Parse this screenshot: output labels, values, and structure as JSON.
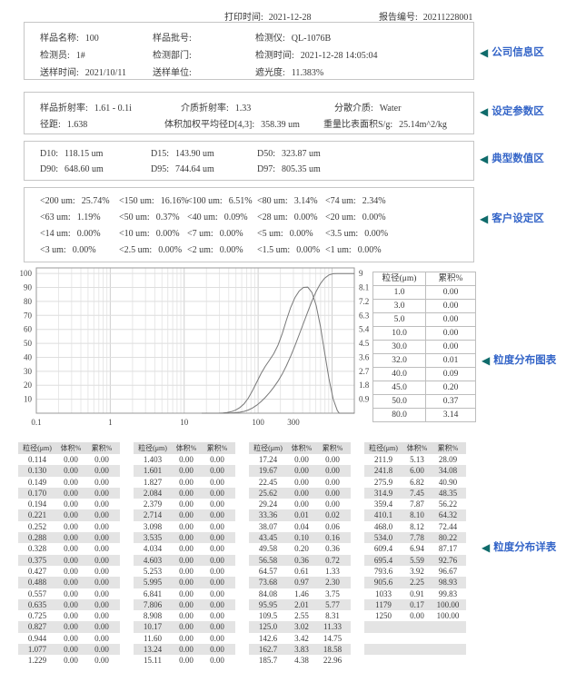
{
  "accent": {
    "label_text_color": "#3465c8",
    "arrow_color": "#0f6b6b"
  },
  "header": {
    "print_label": "打印时间:",
    "print_value": "2021-12-28",
    "report_label": "报告编号:",
    "report_value": "20211228001"
  },
  "company": {
    "label": "公司信息区",
    "fields": [
      [
        "样品名称:",
        "100"
      ],
      [
        "样品批号:",
        ""
      ],
      [
        "检测仪:",
        "QL-1076B"
      ],
      [
        "检测员:",
        "1#"
      ],
      [
        "检测部门:",
        ""
      ],
      [
        "检测时间:",
        "2021-12-28 14:05:04"
      ],
      [
        "送样时间:",
        "2021/10/11"
      ],
      [
        "送样单位:",
        ""
      ],
      [
        "遮光度:",
        "11.383%"
      ]
    ]
  },
  "params": {
    "label": "设定参数区",
    "rows": [
      [
        [
          "样品折射率:",
          "1.61 - 0.1i"
        ],
        [
          "介质折射率:",
          "1.33"
        ],
        [
          "分散介质:",
          "Water"
        ]
      ],
      [
        [
          "径距:",
          "1.638"
        ],
        [
          "体积加权平均径D[4,3]:",
          "358.39 um"
        ],
        [
          "重量比表面积S/g:",
          "25.14m^2/kg"
        ]
      ]
    ]
  },
  "typical": {
    "label": "典型数值区",
    "fields": [
      [
        "D10:",
        "118.15 um"
      ],
      [
        "D15:",
        "143.90 um"
      ],
      [
        "D50:",
        "323.87 um"
      ],
      [
        "D90:",
        "648.60 um"
      ],
      [
        "D95:",
        "744.64 um"
      ],
      [
        "D97:",
        "805.35 um"
      ]
    ]
  },
  "customer": {
    "label": "客户设定区",
    "fields": [
      [
        "<200 um:",
        "25.74%"
      ],
      [
        "<150 um:",
        "16.16%"
      ],
      [
        "<100 um:",
        "6.51%"
      ],
      [
        "<80 um:",
        "3.14%"
      ],
      [
        "<74 um:",
        "2.34%"
      ],
      [
        "<63 um:",
        "1.19%"
      ],
      [
        "<50 um:",
        "0.37%"
      ],
      [
        "<40 um:",
        "0.09%"
      ],
      [
        "<28 um:",
        "0.00%"
      ],
      [
        "<20 um:",
        "0.00%"
      ],
      [
        "<14 um:",
        "0.00%"
      ],
      [
        "<10 um:",
        "0.00%"
      ],
      [
        "<7 um:",
        "0.00%"
      ],
      [
        "<5 um:",
        "0.00%"
      ],
      [
        "<3.5 um:",
        "0.00%"
      ],
      [
        "<3 um:",
        "0.00%"
      ],
      [
        "<2.5 um:",
        "0.00%"
      ],
      [
        "<2 um:",
        "0.00%"
      ],
      [
        "<1.5 um:",
        "0.00%"
      ],
      [
        "<1 um:",
        "0.00%"
      ]
    ]
  },
  "chart_section": {
    "label": "粒度分布图表",
    "side_table": {
      "headers": [
        "粒径(μm)",
        "累积%"
      ],
      "rows": [
        [
          "1.0",
          "0.00"
        ],
        [
          "3.0",
          "0.00"
        ],
        [
          "5.0",
          "0.00"
        ],
        [
          "10.0",
          "0.00"
        ],
        [
          "30.0",
          "0.00"
        ],
        [
          "32.0",
          "0.01"
        ],
        [
          "40.0",
          "0.09"
        ],
        [
          "45.0",
          "0.20"
        ],
        [
          "50.0",
          "0.37"
        ],
        [
          "80.0",
          "3.14"
        ]
      ]
    }
  },
  "chart_data": {
    "type": "line",
    "title": "",
    "x_scale": "log",
    "x_range": [
      0.1,
      2000
    ],
    "x_ticks": [
      0.1,
      1,
      10,
      100,
      300
    ],
    "x_tick_labels": [
      "0.1",
      "1",
      "10",
      "100",
      "300"
    ],
    "y_left": {
      "range": [
        0,
        104
      ],
      "ticks": [
        10,
        20,
        30,
        40,
        50,
        60,
        70,
        80,
        90,
        100
      ]
    },
    "y_right": {
      "max": 9,
      "tick_labels": [
        "0.9",
        "1.8",
        "2.7",
        "3.6",
        "4.5",
        "5.4",
        "6.3",
        "7.2",
        "8.1",
        "9"
      ]
    },
    "grid": true,
    "x": [
      17.24,
      19.67,
      22.45,
      25.62,
      29.24,
      33.36,
      38.07,
      43.45,
      49.58,
      56.58,
      64.57,
      73.68,
      84.08,
      95.95,
      109.5,
      125.0,
      142.6,
      162.7,
      185.7,
      211.9,
      241.8,
      275.9,
      314.9,
      359.4,
      410.1,
      468.0,
      534.0,
      609.4,
      695.4,
      793.6,
      905.6,
      1033,
      1179,
      1250
    ],
    "series": [
      {
        "name": "累积%",
        "axis": "left",
        "y": [
          0,
          0,
          0,
          0,
          0,
          0.02,
          0.06,
          0.16,
          0.36,
          0.72,
          1.33,
          2.3,
          3.75,
          5.77,
          8.31,
          11.33,
          14.75,
          18.58,
          22.96,
          28.09,
          34.08,
          40.9,
          48.35,
          56.22,
          64.32,
          72.44,
          80.22,
          87.17,
          92.76,
          96.67,
          98.93,
          99.83,
          100,
          100
        ]
      },
      {
        "name": "体积%",
        "axis": "right",
        "y": [
          0,
          0,
          0,
          0,
          0,
          0.01,
          0.04,
          0.1,
          0.2,
          0.36,
          0.61,
          0.97,
          1.46,
          2.01,
          2.55,
          3.02,
          3.42,
          3.83,
          4.38,
          5.13,
          6.0,
          6.82,
          7.45,
          7.87,
          8.1,
          8.12,
          7.78,
          6.94,
          5.59,
          3.92,
          2.25,
          0.91,
          0.17,
          0
        ]
      }
    ]
  },
  "detail_table": {
    "label": "粒度分布详表",
    "headers": [
      "粒径(μm)",
      "体积%",
      "累积%"
    ],
    "groups": [
      [
        [
          "0.114",
          "0.00",
          "0.00"
        ],
        [
          "0.130",
          "0.00",
          "0.00"
        ],
        [
          "0.149",
          "0.00",
          "0.00"
        ],
        [
          "0.170",
          "0.00",
          "0.00"
        ],
        [
          "0.194",
          "0.00",
          "0.00"
        ],
        [
          "0.221",
          "0.00",
          "0.00"
        ],
        [
          "0.252",
          "0.00",
          "0.00"
        ],
        [
          "0.288",
          "0.00",
          "0.00"
        ],
        [
          "0.328",
          "0.00",
          "0.00"
        ],
        [
          "0.375",
          "0.00",
          "0.00"
        ],
        [
          "0.427",
          "0.00",
          "0.00"
        ],
        [
          "0.488",
          "0.00",
          "0.00"
        ],
        [
          "0.557",
          "0.00",
          "0.00"
        ],
        [
          "0.635",
          "0.00",
          "0.00"
        ],
        [
          "0.725",
          "0.00",
          "0.00"
        ],
        [
          "0.827",
          "0.00",
          "0.00"
        ],
        [
          "0.944",
          "0.00",
          "0.00"
        ],
        [
          "1.077",
          "0.00",
          "0.00"
        ],
        [
          "1.229",
          "0.00",
          "0.00"
        ]
      ],
      [
        [
          "1.403",
          "0.00",
          "0.00"
        ],
        [
          "1.601",
          "0.00",
          "0.00"
        ],
        [
          "1.827",
          "0.00",
          "0.00"
        ],
        [
          "2.084",
          "0.00",
          "0.00"
        ],
        [
          "2.379",
          "0.00",
          "0.00"
        ],
        [
          "2.714",
          "0.00",
          "0.00"
        ],
        [
          "3.098",
          "0.00",
          "0.00"
        ],
        [
          "3.535",
          "0.00",
          "0.00"
        ],
        [
          "4.034",
          "0.00",
          "0.00"
        ],
        [
          "4.603",
          "0.00",
          "0.00"
        ],
        [
          "5.253",
          "0.00",
          "0.00"
        ],
        [
          "5.995",
          "0.00",
          "0.00"
        ],
        [
          "6.841",
          "0.00",
          "0.00"
        ],
        [
          "7.806",
          "0.00",
          "0.00"
        ],
        [
          "8.908",
          "0.00",
          "0.00"
        ],
        [
          "10.17",
          "0.00",
          "0.00"
        ],
        [
          "11.60",
          "0.00",
          "0.00"
        ],
        [
          "13.24",
          "0.00",
          "0.00"
        ],
        [
          "15.11",
          "0.00",
          "0.00"
        ]
      ],
      [
        [
          "17.24",
          "0.00",
          "0.00"
        ],
        [
          "19.67",
          "0.00",
          "0.00"
        ],
        [
          "22.45",
          "0.00",
          "0.00"
        ],
        [
          "25.62",
          "0.00",
          "0.00"
        ],
        [
          "29.24",
          "0.00",
          "0.00"
        ],
        [
          "33.36",
          "0.01",
          "0.02"
        ],
        [
          "38.07",
          "0.04",
          "0.06"
        ],
        [
          "43.45",
          "0.10",
          "0.16"
        ],
        [
          "49.58",
          "0.20",
          "0.36"
        ],
        [
          "56.58",
          "0.36",
          "0.72"
        ],
        [
          "64.57",
          "0.61",
          "1.33"
        ],
        [
          "73.68",
          "0.97",
          "2.30"
        ],
        [
          "84.08",
          "1.46",
          "3.75"
        ],
        [
          "95.95",
          "2.01",
          "5.77"
        ],
        [
          "109.5",
          "2.55",
          "8.31"
        ],
        [
          "125.0",
          "3.02",
          "11.33"
        ],
        [
          "142.6",
          "3.42",
          "14.75"
        ],
        [
          "162.7",
          "3.83",
          "18.58"
        ],
        [
          "185.7",
          "4.38",
          "22.96"
        ]
      ],
      [
        [
          "211.9",
          "5.13",
          "28.09"
        ],
        [
          "241.8",
          "6.00",
          "34.08"
        ],
        [
          "275.9",
          "6.82",
          "40.90"
        ],
        [
          "314.9",
          "7.45",
          "48.35"
        ],
        [
          "359.4",
          "7.87",
          "56.22"
        ],
        [
          "410.1",
          "8.10",
          "64.32"
        ],
        [
          "468.0",
          "8.12",
          "72.44"
        ],
        [
          "534.0",
          "7.78",
          "80.22"
        ],
        [
          "609.4",
          "6.94",
          "87.17"
        ],
        [
          "695.4",
          "5.59",
          "92.76"
        ],
        [
          "793.6",
          "3.92",
          "96.67"
        ],
        [
          "905.6",
          "2.25",
          "98.93"
        ],
        [
          "1033",
          "0.91",
          "99.83"
        ],
        [
          "1179",
          "0.17",
          "100.00"
        ],
        [
          "1250",
          "0.00",
          "100.00"
        ],
        [
          "",
          "",
          ""
        ],
        [
          "",
          "",
          ""
        ],
        [
          "",
          "",
          ""
        ],
        [
          "",
          "",
          ""
        ]
      ]
    ]
  }
}
